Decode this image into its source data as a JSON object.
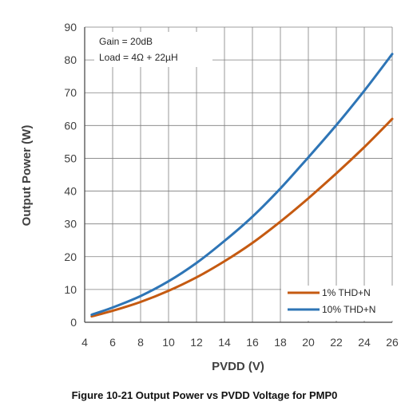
{
  "figure_caption": "Figure 10-21 Output Power vs PVDD Voltage for PMP0",
  "chart_data": {
    "type": "line",
    "xlabel": "PVDD (V)",
    "ylabel": "Output Power (W)",
    "xlim": [
      4,
      26
    ],
    "ylim": [
      0,
      90
    ],
    "xticks": [
      4,
      6,
      8,
      10,
      12,
      14,
      16,
      18,
      20,
      22,
      24,
      26
    ],
    "yticks": [
      0,
      10,
      20,
      30,
      40,
      50,
      60,
      70,
      80,
      90
    ],
    "grid": true,
    "annotations": [
      "Gain = 20dB",
      "Load = 4Ω + 22µH"
    ],
    "legend_position": "bottom-right",
    "series": [
      {
        "name": "1% THD+N",
        "color": "#C55A11",
        "x": [
          4.5,
          6,
          8,
          10,
          12,
          14,
          16,
          18,
          20,
          22,
          24,
          26
        ],
        "y": [
          1.8,
          3.5,
          6.2,
          9.6,
          13.7,
          18.6,
          24.2,
          30.7,
          37.8,
          45.4,
          53.4,
          62.0
        ]
      },
      {
        "name": "10% THD+N",
        "color": "#2E75B6",
        "x": [
          4.5,
          6,
          8,
          10,
          12,
          14,
          16,
          18,
          20,
          22,
          24,
          26
        ],
        "y": [
          2.3,
          4.5,
          8.0,
          12.5,
          18.1,
          24.8,
          32.2,
          40.8,
          50.3,
          60.1,
          70.6,
          81.8
        ]
      }
    ]
  }
}
